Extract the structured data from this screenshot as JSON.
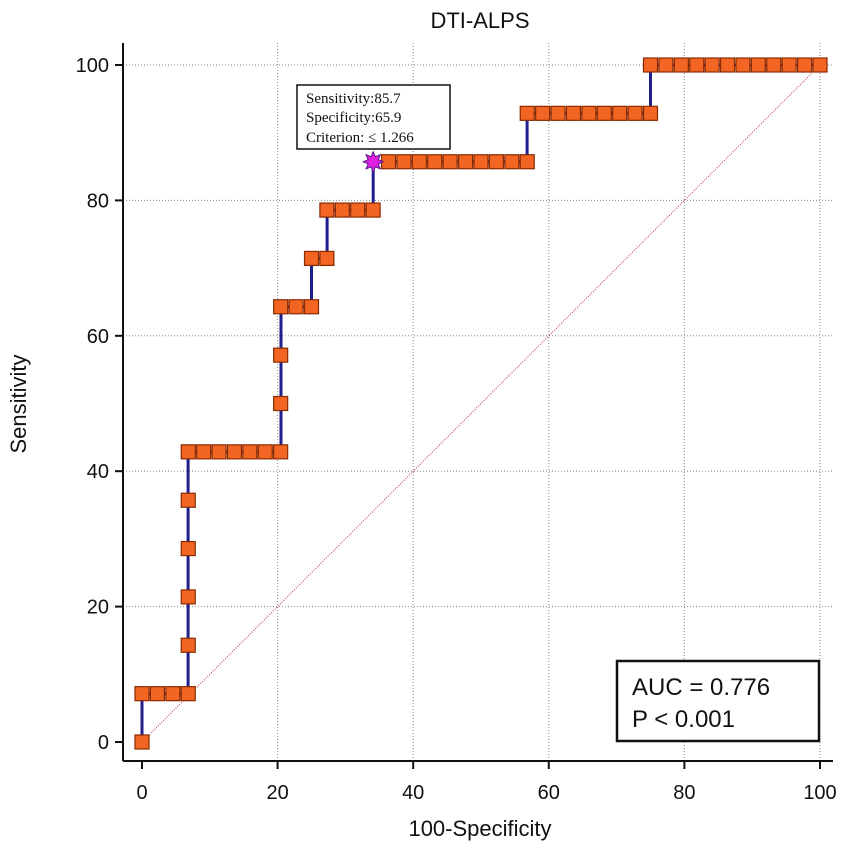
{
  "chart_data": {
    "type": "line",
    "title": "DTI-ALPS",
    "xlabel": "100-Specificity",
    "ylabel": "Sensitivity",
    "xlim": [
      0,
      100
    ],
    "ylim": [
      0,
      100
    ],
    "xticks": [
      0,
      20,
      40,
      60,
      80,
      100
    ],
    "yticks": [
      0,
      20,
      40,
      60,
      80,
      100
    ],
    "grid": true,
    "roc_steps": [
      {
        "x": 0,
        "y": 0
      },
      {
        "x": 0,
        "y": 7.14
      },
      {
        "x": 6.8,
        "y": 7.14
      },
      {
        "x": 6.8,
        "y": 42.86
      },
      {
        "x": 20.5,
        "y": 42.86
      },
      {
        "x": 20.5,
        "y": 64.29
      },
      {
        "x": 25.0,
        "y": 64.29
      },
      {
        "x": 25.0,
        "y": 71.43
      },
      {
        "x": 27.3,
        "y": 71.43
      },
      {
        "x": 27.3,
        "y": 78.57
      },
      {
        "x": 34.1,
        "y": 78.57
      },
      {
        "x": 34.1,
        "y": 85.71
      },
      {
        "x": 56.8,
        "y": 85.71
      },
      {
        "x": 56.8,
        "y": 92.86
      },
      {
        "x": 75.0,
        "y": 92.86
      },
      {
        "x": 75.0,
        "y": 100
      },
      {
        "x": 100,
        "y": 100
      }
    ],
    "points": [
      {
        "x": 0,
        "y": 0
      },
      {
        "x": 0,
        "y": 7.14
      },
      {
        "x": 2.27,
        "y": 7.14
      },
      {
        "x": 4.55,
        "y": 7.14
      },
      {
        "x": 6.82,
        "y": 7.14
      },
      {
        "x": 6.82,
        "y": 14.29
      },
      {
        "x": 6.82,
        "y": 21.43
      },
      {
        "x": 6.82,
        "y": 28.57
      },
      {
        "x": 6.82,
        "y": 35.71
      },
      {
        "x": 6.82,
        "y": 42.86
      },
      {
        "x": 9.09,
        "y": 42.86
      },
      {
        "x": 11.36,
        "y": 42.86
      },
      {
        "x": 13.64,
        "y": 42.86
      },
      {
        "x": 15.91,
        "y": 42.86
      },
      {
        "x": 18.18,
        "y": 42.86
      },
      {
        "x": 20.45,
        "y": 42.86
      },
      {
        "x": 20.45,
        "y": 50.0
      },
      {
        "x": 20.45,
        "y": 57.14
      },
      {
        "x": 20.45,
        "y": 64.29
      },
      {
        "x": 22.73,
        "y": 64.29
      },
      {
        "x": 25.0,
        "y": 64.29
      },
      {
        "x": 25.0,
        "y": 71.43
      },
      {
        "x": 27.27,
        "y": 71.43
      },
      {
        "x": 27.27,
        "y": 78.57
      },
      {
        "x": 29.55,
        "y": 78.57
      },
      {
        "x": 31.82,
        "y": 78.57
      },
      {
        "x": 34.09,
        "y": 78.57
      },
      {
        "x": 36.36,
        "y": 85.71
      },
      {
        "x": 38.64,
        "y": 85.71
      },
      {
        "x": 40.91,
        "y": 85.71
      },
      {
        "x": 43.18,
        "y": 85.71
      },
      {
        "x": 45.45,
        "y": 85.71
      },
      {
        "x": 47.73,
        "y": 85.71
      },
      {
        "x": 50.0,
        "y": 85.71
      },
      {
        "x": 52.27,
        "y": 85.71
      },
      {
        "x": 54.55,
        "y": 85.71
      },
      {
        "x": 56.82,
        "y": 85.71
      },
      {
        "x": 56.82,
        "y": 92.86
      },
      {
        "x": 59.09,
        "y": 92.86
      },
      {
        "x": 61.36,
        "y": 92.86
      },
      {
        "x": 63.64,
        "y": 92.86
      },
      {
        "x": 65.91,
        "y": 92.86
      },
      {
        "x": 68.18,
        "y": 92.86
      },
      {
        "x": 70.45,
        "y": 92.86
      },
      {
        "x": 72.73,
        "y": 92.86
      },
      {
        "x": 75.0,
        "y": 92.86
      },
      {
        "x": 75.0,
        "y": 100
      },
      {
        "x": 77.27,
        "y": 100
      },
      {
        "x": 79.55,
        "y": 100
      },
      {
        "x": 81.82,
        "y": 100
      },
      {
        "x": 84.09,
        "y": 100
      },
      {
        "x": 86.36,
        "y": 100
      },
      {
        "x": 88.64,
        "y": 100
      },
      {
        "x": 90.91,
        "y": 100
      },
      {
        "x": 93.18,
        "y": 100
      },
      {
        "x": 95.45,
        "y": 100
      },
      {
        "x": 97.73,
        "y": 100
      },
      {
        "x": 100,
        "y": 100
      }
    ],
    "optimal_point": {
      "x": 34.1,
      "y": 85.7
    },
    "reference_line": [
      [
        0,
        0
      ],
      [
        100,
        100
      ]
    ],
    "annotation": {
      "lines": [
        "Sensitivity:85.7",
        "Specificity:65.9",
        "Criterion:  ≤ 1.266"
      ]
    },
    "stats": {
      "auc": "AUC = 0.776",
      "p": "P < 0.001"
    },
    "colors": {
      "curve": "#1f1f8f",
      "marker_fill": "#f26522",
      "marker_stroke": "#8a2a00",
      "optimal": "#e020e0",
      "reference": "#b03030",
      "grid": "#8a8a8a"
    }
  }
}
